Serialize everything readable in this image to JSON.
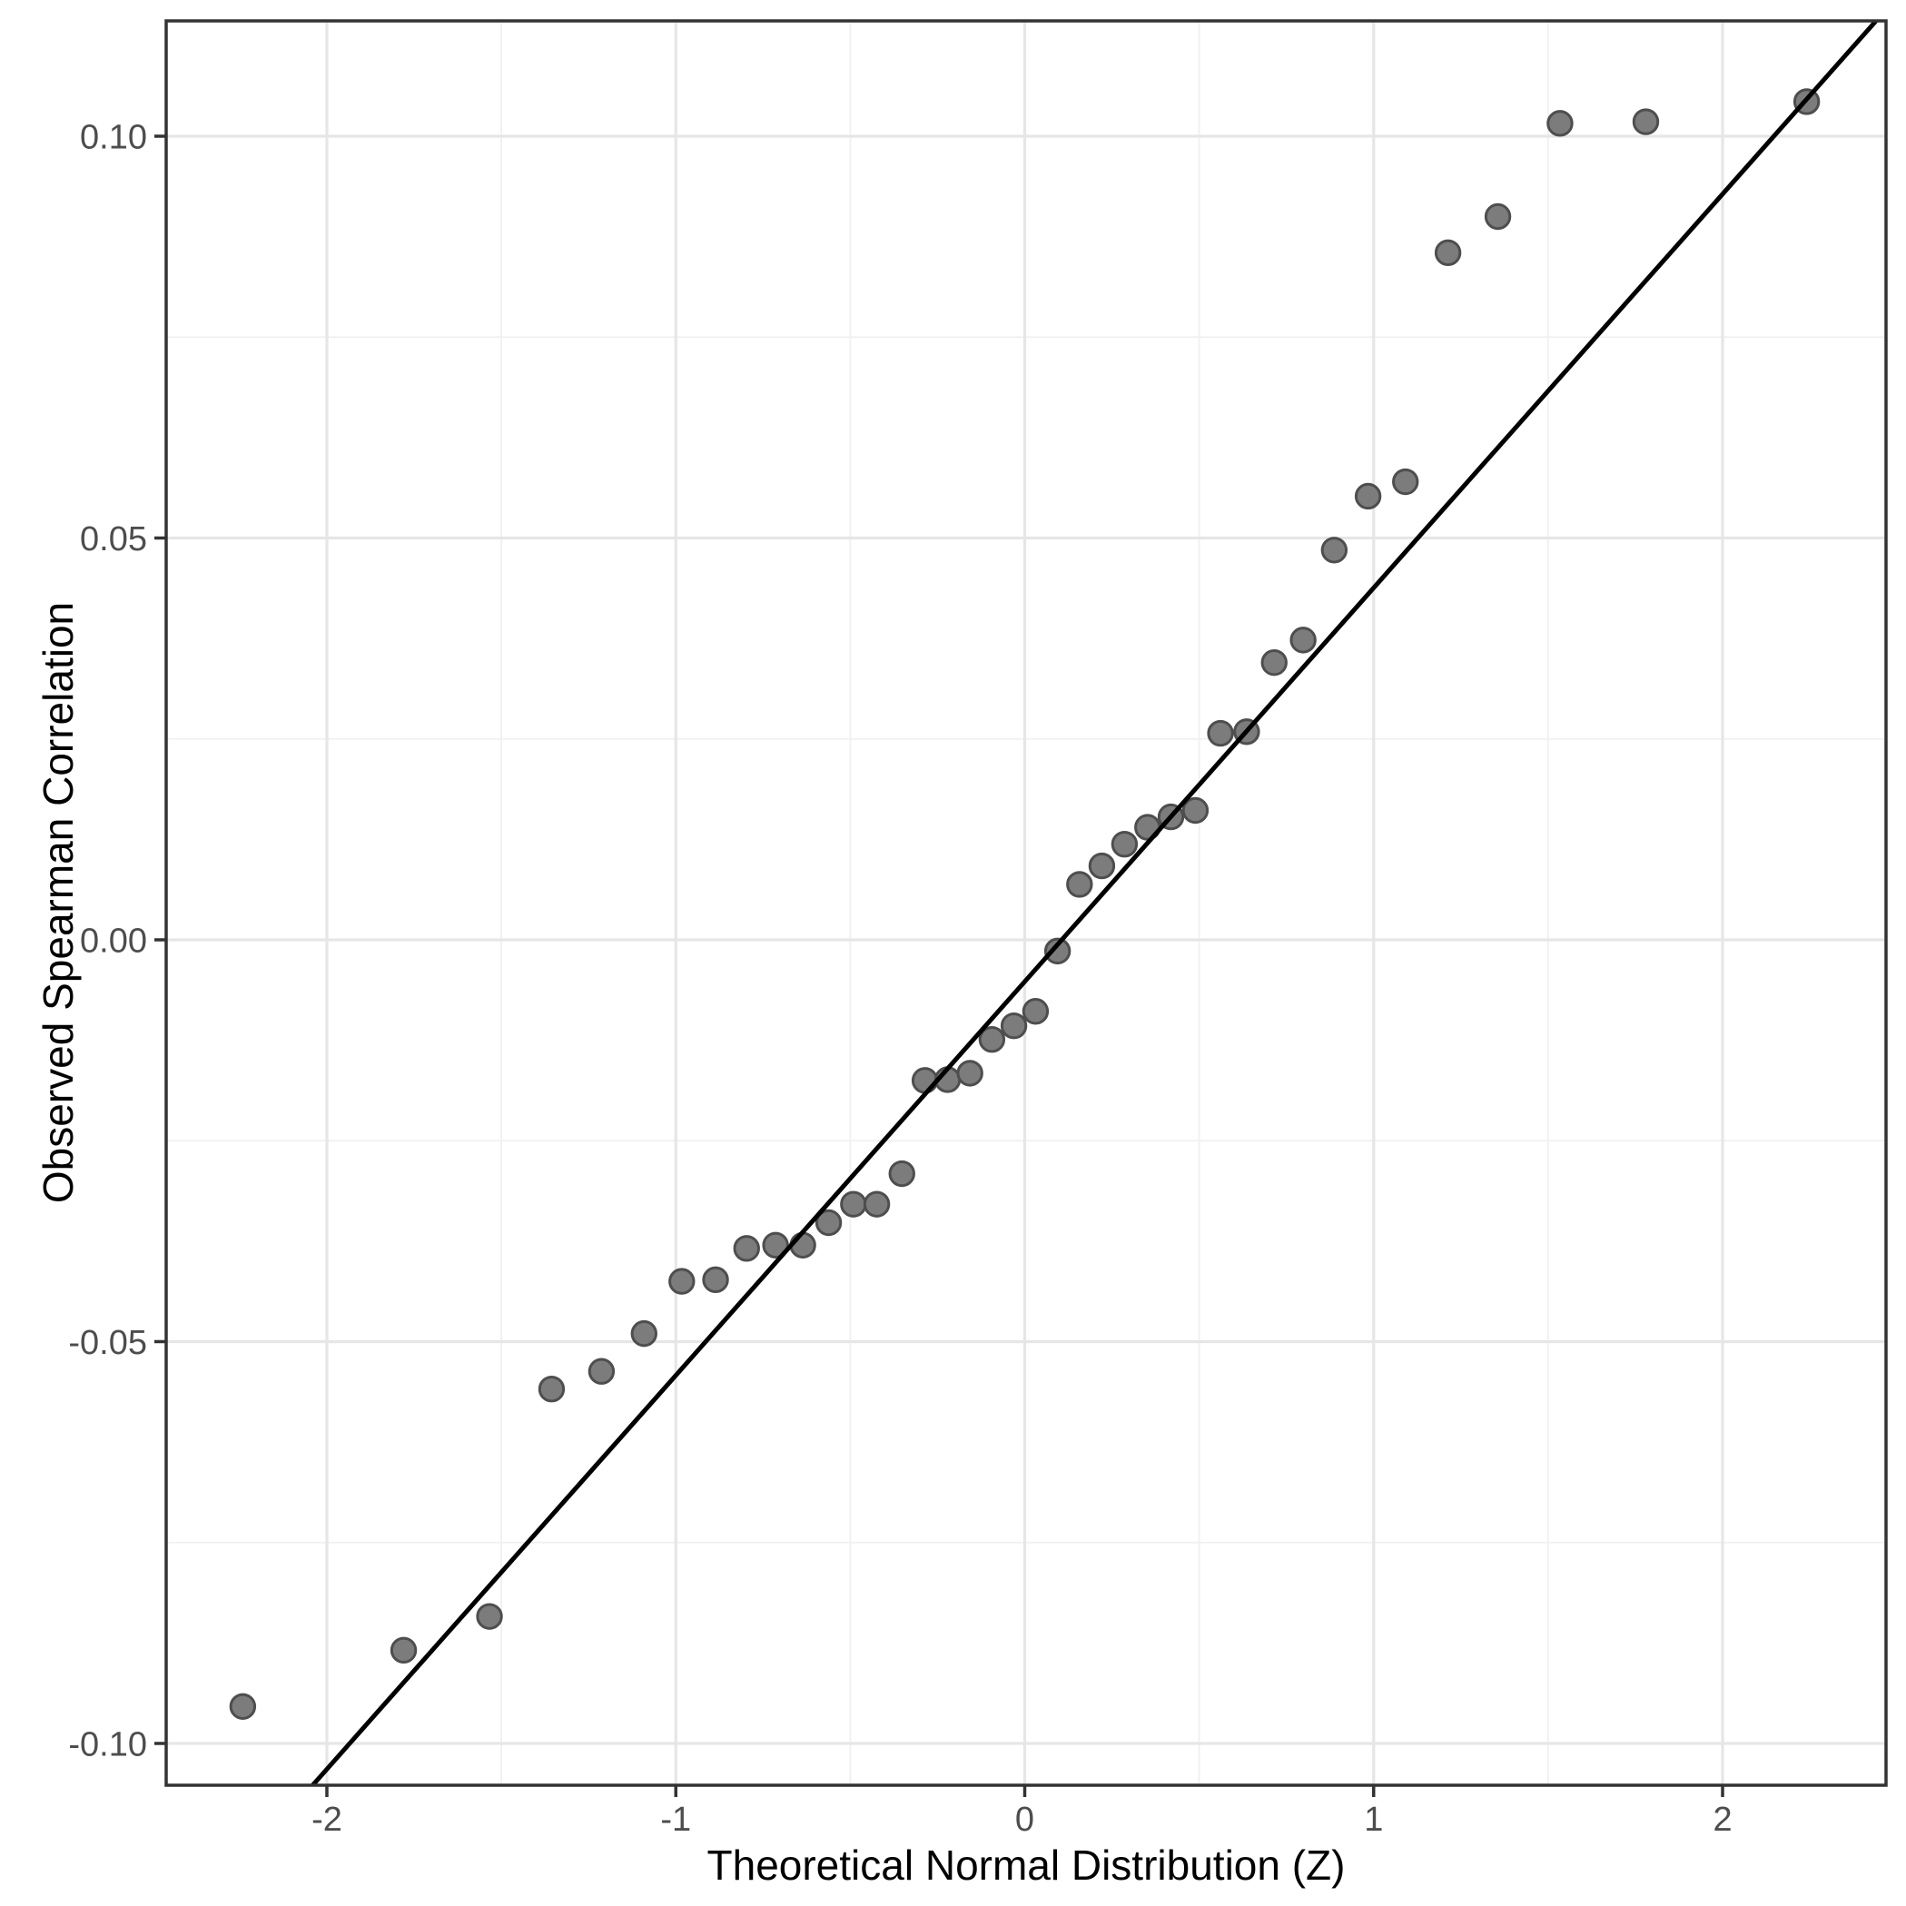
{
  "chart_data": {
    "type": "scatter",
    "title": "",
    "xlabel": "Theoretical Normal Distribution (Z)",
    "ylabel": "Observed Spearman Correlation",
    "xlim": [
      -2.4606,
      2.4684
    ],
    "ylim": [
      -0.1052,
      0.11435
    ],
    "grid": true,
    "legend": false,
    "x_ticks": {
      "values": [
        -2,
        -1,
        0,
        1,
        2
      ],
      "labels": [
        "-2",
        "-1",
        "0",
        "1",
        "2"
      ]
    },
    "y_ticks": {
      "values": [
        0.1,
        0.05,
        0.0,
        -0.05,
        -0.1
      ],
      "labels": [
        "0.10",
        "0.05",
        "0.00",
        "-0.05",
        "-0.10"
      ]
    },
    "x_minor": [
      -1.5,
      -0.5,
      0.5,
      1.5
    ],
    "y_minor": [
      0.075,
      0.025,
      -0.025,
      -0.075
    ],
    "reference_line": {
      "slope": 0.049,
      "intercept": -0.0052
    },
    "points": [
      [
        -2.241,
        -0.0954
      ],
      [
        -1.78,
        -0.0884
      ],
      [
        -1.534,
        -0.0842
      ],
      [
        -1.356,
        -0.0559
      ],
      [
        -1.213,
        -0.0537
      ],
      [
        -1.091,
        -0.049
      ],
      [
        -0.983,
        -0.0425
      ],
      [
        -0.886,
        -0.0423
      ],
      [
        -0.797,
        -0.0384
      ],
      [
        -0.714,
        -0.038
      ],
      [
        -0.636,
        -0.038
      ],
      [
        -0.562,
        -0.0352
      ],
      [
        -0.491,
        -0.0329
      ],
      [
        -0.424,
        -0.0329
      ],
      [
        -0.352,
        -0.0291
      ],
      [
        -0.286,
        -0.0175
      ],
      [
        -0.221,
        -0.0174
      ],
      [
        -0.157,
        -0.0166
      ],
      [
        -0.094,
        -0.0124
      ],
      [
        -0.031,
        -0.0107
      ],
      [
        0.031,
        -0.0089
      ],
      [
        0.094,
        -0.0014
      ],
      [
        0.157,
        0.0069
      ],
      [
        0.221,
        0.0092
      ],
      [
        0.286,
        0.0119
      ],
      [
        0.352,
        0.014
      ],
      [
        0.419,
        0.0153
      ],
      [
        0.489,
        0.0161
      ],
      [
        0.561,
        0.0257
      ],
      [
        0.636,
        0.0259
      ],
      [
        0.715,
        0.0345
      ],
      [
        0.798,
        0.0373
      ],
      [
        0.887,
        0.0485
      ],
      [
        0.984,
        0.0552
      ],
      [
        1.091,
        0.057
      ],
      [
        1.213,
        0.0855
      ],
      [
        1.356,
        0.09
      ],
      [
        1.534,
        0.1016
      ],
      [
        1.78,
        0.1018
      ],
      [
        2.241,
        0.1043
      ]
    ],
    "colors": {
      "background": "#ffffff",
      "panel_border": "#333333",
      "grid_major": "#e6e6e6",
      "grid_minor": "#f0f0f0",
      "tick": "#333333",
      "tick_label": "#4d4d4d",
      "axis_title": "#000000",
      "point_fill": "#7c7c7c",
      "point_stroke": "#4e4e4e",
      "reference_line": "#000000"
    }
  }
}
